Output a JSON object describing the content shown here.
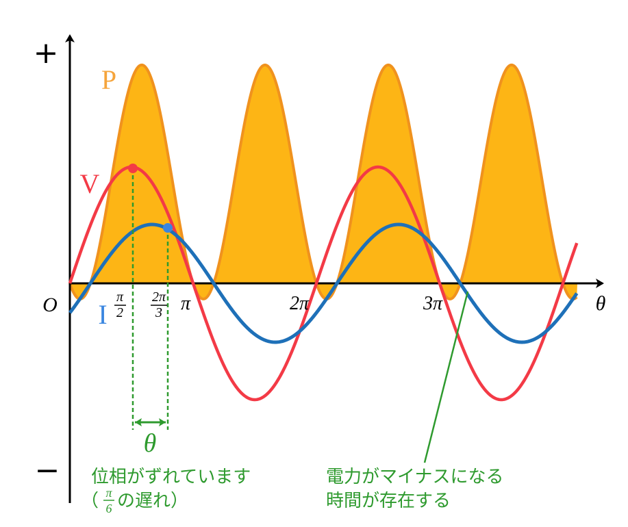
{
  "diagram": {
    "axes": {
      "plus_label": "+",
      "minus_label": "−",
      "origin_label": "O",
      "theta_axis_label": "θ"
    },
    "ticks": {
      "pi_half_num": "π",
      "pi_half_den": "2",
      "two_pi_third_num": "2π",
      "two_pi_third_den": "3",
      "pi": "π",
      "two_pi": "2π",
      "three_pi": "3π"
    },
    "curve_labels": {
      "power": "P",
      "voltage": "V",
      "current": "I"
    },
    "phase": {
      "delta_symbol": "θ"
    },
    "annotations": {
      "phase_line1": "位相がずれています",
      "phase_line2_open": "（",
      "phase_line2_num": "π",
      "phase_line2_den": "6",
      "phase_line2_rest": "の遅れ）",
      "power_line1": "電力がマイナスになる",
      "power_line2": "時間が存在する"
    },
    "colors": {
      "power_fill": "#FDB515",
      "power_stroke": "#F0921E",
      "voltage": "#F33A46",
      "current": "#1E70B8",
      "annotation": "#2E9A2E",
      "axis": "#000000"
    },
    "curves": {
      "voltage_phase": 0,
      "current_phase_shift": "π/6",
      "periods_shown": "0 to 4π"
    }
  }
}
